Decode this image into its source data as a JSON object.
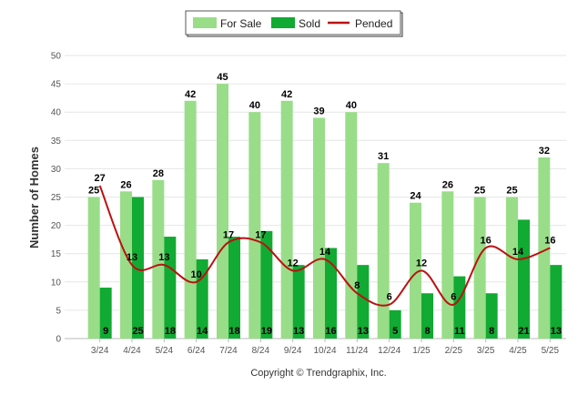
{
  "chart_data": {
    "type": "bar",
    "categories": [
      "3/24",
      "4/24",
      "5/24",
      "6/24",
      "7/24",
      "8/24",
      "9/24",
      "10/24",
      "11/24",
      "12/24",
      "1/25",
      "2/25",
      "3/25",
      "4/25",
      "5/25"
    ],
    "series": [
      {
        "name": "For Sale",
        "kind": "bar",
        "color": "#99dd88",
        "values": [
          25,
          26,
          28,
          42,
          45,
          40,
          42,
          39,
          40,
          31,
          24,
          26,
          25,
          25,
          32
        ]
      },
      {
        "name": "Sold",
        "kind": "bar",
        "color": "#11aa33",
        "values": [
          9,
          25,
          18,
          14,
          18,
          19,
          13,
          16,
          13,
          5,
          8,
          11,
          8,
          21,
          13
        ]
      },
      {
        "name": "Pended",
        "kind": "line",
        "color": "#bb1111",
        "values": [
          27,
          13,
          13,
          10,
          17,
          17,
          12,
          14,
          8,
          6,
          12,
          6,
          16,
          14,
          16
        ]
      }
    ],
    "ylabel": "Number of Homes",
    "ylim": [
      0,
      50
    ],
    "yticks": [
      0,
      5,
      10,
      15,
      20,
      25,
      30,
      35,
      40,
      45,
      50
    ],
    "grid": true,
    "legend_position": "top-center"
  },
  "footer": {
    "copyright": "Copyright © Trendgraphix, Inc."
  }
}
